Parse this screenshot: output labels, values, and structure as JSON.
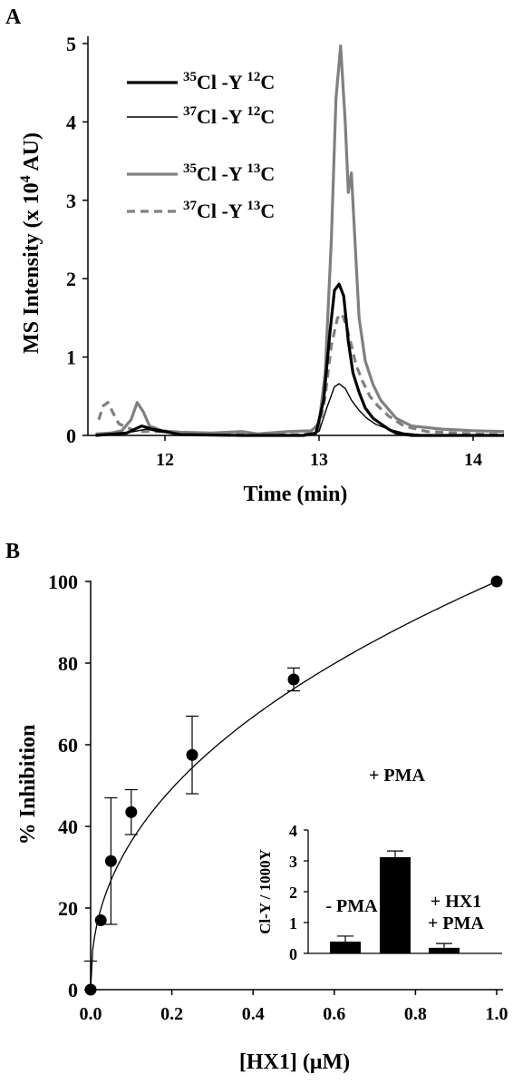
{
  "colors": {
    "black": "#000000",
    "gray": "#808080"
  },
  "panels": {
    "a": {
      "label": "A"
    },
    "b": {
      "label": "B"
    }
  },
  "chart_data": [
    {
      "type": "line",
      "panel": "A",
      "xlabel": "Time (min)",
      "ylabel": "MS Intensity (x 10⁴ AU)",
      "xlim": [
        11.5,
        14.2
      ],
      "ylim": [
        0,
        5
      ],
      "xticks": [
        12,
        13,
        14
      ],
      "yticks": [
        0,
        1,
        2,
        3,
        4,
        5
      ],
      "legend_position": "top-left",
      "series": [
        {
          "name": "³⁵Cl-Y ¹²C",
          "color": "#000000",
          "style": "thick-solid",
          "points": [
            [
              11.55,
              0.0
            ],
            [
              11.68,
              0.02
            ],
            [
              11.75,
              0.03
            ],
            [
              11.85,
              0.12
            ],
            [
              11.92,
              0.08
            ],
            [
              12.1,
              0.01
            ],
            [
              12.5,
              0.0
            ],
            [
              12.9,
              0.0
            ],
            [
              12.98,
              0.03
            ],
            [
              13.03,
              0.45
            ],
            [
              13.07,
              1.3
            ],
            [
              13.1,
              1.85
            ],
            [
              13.13,
              1.93
            ],
            [
              13.16,
              1.78
            ],
            [
              13.19,
              1.2
            ],
            [
              13.22,
              0.8
            ],
            [
              13.26,
              0.55
            ],
            [
              13.3,
              0.35
            ],
            [
              13.35,
              0.22
            ],
            [
              13.4,
              0.15
            ],
            [
              13.45,
              0.08
            ],
            [
              13.5,
              0.03
            ],
            [
              13.6,
              0.0
            ],
            [
              14.2,
              0.0
            ]
          ]
        },
        {
          "name": "³⁷Cl-Y ¹²C",
          "color": "#000000",
          "style": "thin-solid",
          "points": [
            [
              11.55,
              0.0
            ],
            [
              11.7,
              0.02
            ],
            [
              11.8,
              0.05
            ],
            [
              11.88,
              0.08
            ],
            [
              11.95,
              0.05
            ],
            [
              12.1,
              0.01
            ],
            [
              12.5,
              0.0
            ],
            [
              12.9,
              0.0
            ],
            [
              13.0,
              0.05
            ],
            [
              13.05,
              0.35
            ],
            [
              13.1,
              0.62
            ],
            [
              13.13,
              0.66
            ],
            [
              13.17,
              0.6
            ],
            [
              13.21,
              0.45
            ],
            [
              13.26,
              0.32
            ],
            [
              13.31,
              0.22
            ],
            [
              13.37,
              0.14
            ],
            [
              13.45,
              0.08
            ],
            [
              13.55,
              0.03
            ],
            [
              13.7,
              0.0
            ],
            [
              14.2,
              0.0
            ]
          ]
        },
        {
          "name": "³⁵Cl-Y ¹³C",
          "color": "#808080",
          "style": "thick-solid",
          "points": [
            [
              11.55,
              0.02
            ],
            [
              11.65,
              0.03
            ],
            [
              11.72,
              0.06
            ],
            [
              11.78,
              0.2
            ],
            [
              11.82,
              0.42
            ],
            [
              11.86,
              0.3
            ],
            [
              11.9,
              0.12
            ],
            [
              11.98,
              0.06
            ],
            [
              12.1,
              0.04
            ],
            [
              12.3,
              0.03
            ],
            [
              12.5,
              0.05
            ],
            [
              12.6,
              0.02
            ],
            [
              12.8,
              0.05
            ],
            [
              12.95,
              0.06
            ],
            [
              13.0,
              0.15
            ],
            [
              13.04,
              0.8
            ],
            [
              13.08,
              2.5
            ],
            [
              13.11,
              4.3
            ],
            [
              13.14,
              4.97
            ],
            [
              13.17,
              4.0
            ],
            [
              13.19,
              3.1
            ],
            [
              13.21,
              3.35
            ],
            [
              13.23,
              2.6
            ],
            [
              13.26,
              1.5
            ],
            [
              13.3,
              0.95
            ],
            [
              13.35,
              0.65
            ],
            [
              13.4,
              0.45
            ],
            [
              13.5,
              0.22
            ],
            [
              13.6,
              0.12
            ],
            [
              13.8,
              0.08
            ],
            [
              14.0,
              0.06
            ],
            [
              14.2,
              0.05
            ]
          ]
        },
        {
          "name": "³⁷Cl-Y ¹³C",
          "color": "#808080",
          "style": "dashed",
          "points": [
            [
              11.57,
              0.2
            ],
            [
              11.6,
              0.38
            ],
            [
              11.63,
              0.42
            ],
            [
              11.66,
              0.3
            ],
            [
              11.7,
              0.15
            ],
            [
              11.78,
              0.08
            ],
            [
              11.85,
              0.05
            ],
            [
              12.0,
              0.05
            ],
            [
              12.2,
              0.02
            ],
            [
              12.5,
              0.01
            ],
            [
              12.9,
              0.01
            ],
            [
              13.0,
              0.08
            ],
            [
              13.04,
              0.5
            ],
            [
              13.08,
              1.15
            ],
            [
              13.12,
              1.5
            ],
            [
              13.15,
              1.55
            ],
            [
              13.18,
              1.38
            ],
            [
              13.21,
              1.15
            ],
            [
              13.24,
              0.9
            ],
            [
              13.28,
              0.7
            ],
            [
              13.33,
              0.5
            ],
            [
              13.38,
              0.38
            ],
            [
              13.45,
              0.25
            ],
            [
              13.55,
              0.12
            ],
            [
              13.7,
              0.05
            ],
            [
              14.0,
              0.02
            ],
            [
              14.2,
              0.01
            ]
          ]
        }
      ]
    },
    {
      "type": "scatter",
      "panel": "B",
      "xlabel": "[HX1] (μM)",
      "ylabel": "% Inhibition",
      "xlim": [
        0,
        1.0
      ],
      "ylim": [
        0,
        100
      ],
      "xticks": [
        "0.0",
        "0.2",
        "0.4",
        "0.6",
        "0.8",
        "1.0"
      ],
      "yticks": [
        "0",
        "20",
        "40",
        "60",
        "80",
        "100"
      ],
      "grid": false,
      "fit_curve": true,
      "points": [
        {
          "x": 0.0,
          "y": 0,
          "err": 7
        },
        {
          "x": 0.025,
          "y": 17,
          "err": 0
        },
        {
          "x": 0.05,
          "y": 31.5,
          "err": 15.5
        },
        {
          "x": 0.1,
          "y": 43.5,
          "err": 5.5
        },
        {
          "x": 0.25,
          "y": 57.5,
          "err": 9.5
        },
        {
          "x": 0.5,
          "y": 76,
          "err": 2.8
        },
        {
          "x": 1.0,
          "y": 100,
          "err": 0
        }
      ]
    },
    {
      "type": "bar",
      "panel": "B-inset",
      "ylabel": "Cl-Y / 1000Y",
      "ylim": [
        0,
        4
      ],
      "yticks": [
        "0",
        "1",
        "2",
        "3",
        "4"
      ],
      "categories": [
        "- PMA",
        "+ PMA",
        "+ HX1\n+ PMA"
      ],
      "category_lines": [
        [
          "- PMA"
        ],
        [
          "+ PMA"
        ],
        [
          "+ HX1",
          "+ PMA"
        ]
      ],
      "values": [
        0.38,
        3.12,
        0.18
      ],
      "errors": [
        0.18,
        0.2,
        0.14
      ],
      "color": "#000000"
    }
  ]
}
